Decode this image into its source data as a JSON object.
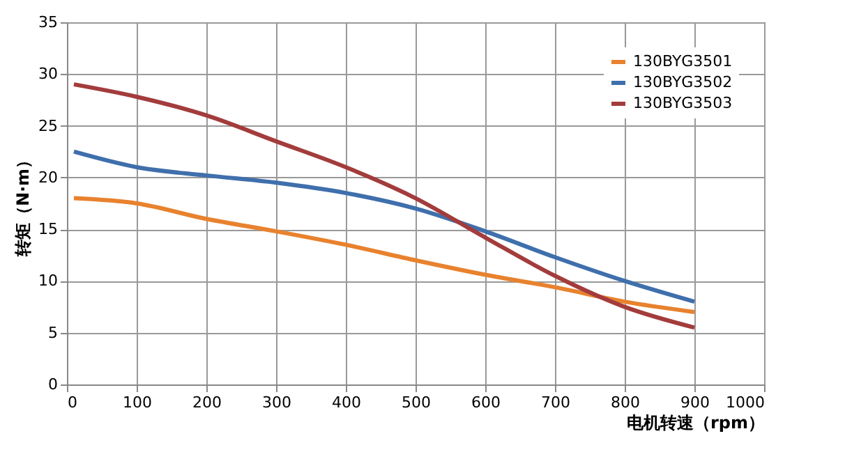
{
  "chart_data": {
    "type": "line",
    "xlabel": "电机转速（rpm）",
    "ylabel": "转矩（N·m）",
    "x": [
      10,
      100,
      200,
      300,
      400,
      500,
      600,
      700,
      800,
      900
    ],
    "series": [
      {
        "name": "130BYG3501",
        "color": "#e8822e",
        "values": [
          18,
          17.5,
          16,
          14.8,
          13.5,
          12,
          10.6,
          9.4,
          8,
          7
        ]
      },
      {
        "name": "130BYG3502",
        "color": "#3f6fac",
        "values": [
          22.5,
          21,
          20.2,
          19.5,
          18.5,
          17,
          14.8,
          12.3,
          10,
          8
        ]
      },
      {
        "name": "130BYG3503",
        "color": "#a33c3c",
        "values": [
          29,
          27.8,
          26,
          23.5,
          21,
          18,
          14.2,
          10.5,
          7.5,
          5.5
        ]
      }
    ],
    "xlim": [
      0,
      1000
    ],
    "xticks": [
      0,
      100,
      200,
      300,
      400,
      500,
      600,
      700,
      800,
      900,
      1000
    ],
    "ylim": [
      0,
      35
    ],
    "yticks": [
      0,
      5,
      10,
      15,
      20,
      25,
      30,
      35
    ],
    "grid": true,
    "legend": "top right",
    "marker": "none",
    "line_style": "solid"
  }
}
